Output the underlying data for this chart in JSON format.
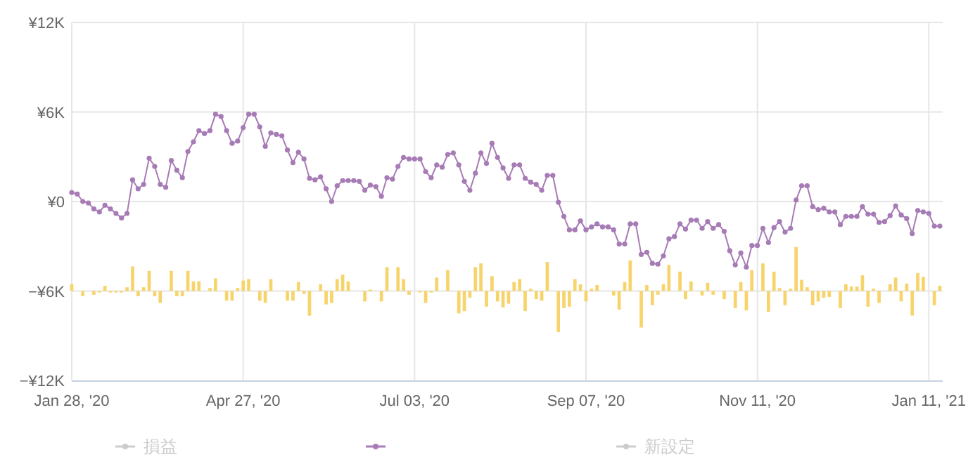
{
  "chart_data": {
    "type": "line",
    "marker": "circle",
    "line_style": "solid",
    "grid": true,
    "legend": "bottom",
    "ylim": [
      -12000,
      12000
    ],
    "yticks": [
      {
        "value": -12000,
        "label": "−¥12K"
      },
      {
        "value": -6000,
        "label": "−¥6K"
      },
      {
        "value": 0,
        "label": "¥0"
      },
      {
        "value": 6000,
        "label": "¥6K"
      },
      {
        "value": 12000,
        "label": "¥12K"
      }
    ],
    "categories": [
      "Jan 28, '20",
      null,
      null,
      null,
      null,
      null,
      null,
      null,
      null,
      null,
      null,
      null,
      null,
      null,
      null,
      null,
      null,
      null,
      null,
      null,
      null,
      null,
      null,
      null,
      null,
      null,
      null,
      null,
      null,
      null,
      null,
      "Apr 27, '20",
      null,
      null,
      null,
      null,
      null,
      null,
      null,
      null,
      null,
      null,
      null,
      null,
      null,
      null,
      null,
      null,
      null,
      null,
      null,
      null,
      null,
      null,
      null,
      null,
      null,
      null,
      null,
      null,
      null,
      null,
      "Jul 03, '20",
      null,
      null,
      null,
      null,
      null,
      null,
      null,
      null,
      null,
      null,
      null,
      null,
      null,
      null,
      null,
      null,
      null,
      null,
      null,
      null,
      null,
      null,
      null,
      null,
      null,
      null,
      null,
      null,
      null,
      null,
      "Sep 07, '20",
      null,
      null,
      null,
      null,
      null,
      null,
      null,
      null,
      null,
      null,
      null,
      null,
      null,
      null,
      null,
      null,
      null,
      null,
      null,
      null,
      null,
      null,
      null,
      null,
      null,
      null,
      null,
      null,
      null,
      null,
      "Nov 11, '20",
      null,
      null,
      null,
      null,
      null,
      null,
      null,
      null,
      null,
      null,
      null,
      null,
      null,
      null,
      null,
      null,
      null,
      null,
      null,
      null,
      null,
      null,
      null,
      null,
      null,
      null,
      null,
      null,
      null,
      null,
      "Jan 11, '21",
      null,
      null
    ],
    "series": [
      {
        "name": "損益",
        "type": "line",
        "color": "#cccccc",
        "values": [
          null,
          null,
          null,
          null,
          null,
          null,
          null,
          null,
          null,
          null,
          null,
          null,
          null,
          null,
          null,
          null,
          null,
          null,
          null,
          null,
          null,
          null,
          null,
          null,
          null,
          null,
          null,
          null,
          null,
          null,
          null,
          null,
          null,
          null,
          null,
          null,
          null,
          null,
          null,
          null,
          null,
          null,
          null,
          null,
          null,
          null,
          null,
          null,
          null,
          null,
          null,
          null,
          null,
          null,
          null,
          null,
          null,
          null,
          null,
          null,
          null,
          null,
          null,
          null,
          null,
          null,
          null,
          null,
          null,
          null,
          null,
          null,
          null,
          null,
          null,
          null,
          null,
          null,
          null,
          null,
          null,
          null,
          null,
          null,
          null,
          null,
          null,
          null,
          null,
          null,
          null,
          null,
          null,
          null,
          null,
          null,
          null,
          null,
          null,
          null,
          null,
          null,
          null,
          null,
          null,
          null,
          null,
          null,
          null,
          null,
          null,
          null,
          null,
          null,
          null,
          null,
          null,
          null,
          null,
          null,
          null,
          null,
          null,
          null,
          null,
          null,
          null,
          null,
          null,
          null,
          null,
          null,
          null,
          null,
          null,
          null,
          null,
          null,
          null,
          null,
          null,
          null,
          null,
          null,
          null,
          null,
          null,
          null,
          null,
          null,
          null,
          null,
          null,
          null,
          null,
          null,
          null,
          null
        ]
      },
      {
        "type": "line",
        "color": "#a77bb5",
        "values": [
          600,
          500,
          0,
          -100,
          -500,
          -700,
          -250,
          -500,
          -800,
          -1100,
          -800,
          1450,
          850,
          1150,
          2900,
          2350,
          1150,
          950,
          2750,
          2100,
          1600,
          3350,
          4000,
          4750,
          4550,
          4750,
          5850,
          5700,
          4750,
          3900,
          4050,
          4950,
          5850,
          5850,
          5000,
          3700,
          4600,
          4500,
          4400,
          3450,
          2600,
          3300,
          2850,
          1550,
          1450,
          1650,
          850,
          0,
          1050,
          1400,
          1400,
          1400,
          1350,
          750,
          1100,
          1000,
          350,
          1600,
          1500,
          2350,
          2950,
          2850,
          2850,
          2850,
          2000,
          1600,
          2450,
          2300,
          3150,
          3250,
          2450,
          1350,
          750,
          1900,
          3250,
          2550,
          3900,
          2950,
          2250,
          1550,
          2450,
          2450,
          1550,
          1300,
          1150,
          750,
          1750,
          1750,
          -50,
          -1000,
          -1900,
          -1900,
          -1300,
          -1900,
          -1700,
          -1500,
          -1700,
          -1700,
          -1900,
          -2850,
          -2850,
          -1500,
          -1500,
          -3550,
          -3400,
          -4150,
          -4200,
          -3650,
          -2500,
          -2350,
          -1500,
          -1850,
          -1250,
          -1250,
          -1800,
          -1350,
          -1800,
          -1550,
          -2000,
          -3300,
          -4250,
          -3450,
          -4400,
          -2950,
          -2950,
          -1800,
          -2750,
          -1750,
          -1350,
          -2050,
          -1800,
          100,
          1050,
          1050,
          -350,
          -550,
          -450,
          -700,
          -700,
          -1550,
          -1000,
          -1000,
          -1000,
          -350,
          -850,
          -850,
          -1400,
          -1350,
          -950,
          -300,
          -900,
          -1150,
          -2150,
          -600,
          -700,
          -800,
          -1650,
          -1650
        ]
      },
      {
        "name": "新設定",
        "type": "line",
        "color": "#cccccc",
        "values": [
          null,
          null,
          null,
          null,
          null,
          null,
          null,
          null,
          null,
          null,
          null,
          null,
          null,
          null,
          null,
          null,
          null,
          null,
          null,
          null,
          null,
          null,
          null,
          null,
          null,
          null,
          null,
          null,
          null,
          null,
          null,
          null,
          null,
          null,
          null,
          null,
          null,
          null,
          null,
          null,
          null,
          null,
          null,
          null,
          null,
          null,
          null,
          null,
          null,
          null,
          null,
          null,
          null,
          null,
          null,
          null,
          null,
          null,
          null,
          null,
          null,
          null,
          null,
          null,
          null,
          null,
          null,
          null,
          null,
          null,
          null,
          null,
          null,
          null,
          null,
          null,
          null,
          null,
          null,
          null,
          null,
          null,
          null,
          null,
          null,
          null,
          null,
          null,
          null,
          null,
          null,
          null,
          null,
          null,
          null,
          null,
          null,
          null,
          null,
          null,
          null,
          null,
          null,
          null,
          null,
          null,
          null,
          null,
          null,
          null,
          null,
          null,
          null,
          null,
          null,
          null,
          null,
          null,
          null,
          null,
          null,
          null,
          null,
          null,
          null,
          null,
          null,
          null,
          null,
          null,
          null,
          null,
          null,
          null,
          null,
          null,
          null,
          null,
          null,
          null,
          null,
          null,
          null,
          null,
          null,
          null,
          null,
          null,
          null,
          null,
          null,
          null,
          null,
          null,
          null,
          null,
          null,
          null
        ]
      },
      {
        "type": "bar",
        "color": "#f7d46b",
        "values": [
          450,
          0,
          -350,
          0,
          -250,
          -100,
          350,
          -100,
          -100,
          -100,
          250,
          1650,
          -350,
          250,
          1350,
          -350,
          -800,
          0,
          1350,
          -350,
          -350,
          1350,
          650,
          650,
          0,
          200,
          850,
          0,
          -650,
          -650,
          200,
          700,
          800,
          0,
          -650,
          -800,
          800,
          0,
          0,
          -650,
          -650,
          600,
          -200,
          -1650,
          0,
          450,
          -900,
          -800,
          800,
          1100,
          650,
          0,
          0,
          -700,
          100,
          0,
          -700,
          1600,
          0,
          1600,
          800,
          -250,
          0,
          -100,
          -800,
          -100,
          900,
          0,
          1400,
          0,
          -1500,
          -1350,
          -450,
          1600,
          1850,
          -1050,
          1000,
          -700,
          -1100,
          -850,
          600,
          800,
          -1350,
          150,
          -550,
          -650,
          1950,
          0,
          -2750,
          -1150,
          -1050,
          800,
          450,
          -700,
          150,
          400,
          0,
          0,
          -300,
          -1250,
          600,
          2050,
          0,
          -2450,
          400,
          -950,
          -250,
          450,
          1750,
          0,
          1300,
          -550,
          650,
          0,
          -300,
          550,
          -250,
          0,
          -550,
          0,
          -1150,
          600,
          -1300,
          1400,
          0,
          1850,
          -1400,
          1300,
          200,
          -950,
          150,
          2950,
          750,
          250,
          -950,
          -700,
          -450,
          -400,
          0,
          -1150,
          450,
          300,
          300,
          1050,
          -1050,
          150,
          -800,
          0,
          450,
          900,
          -700,
          500,
          -1650,
          1200,
          950,
          0,
          -950,
          350
        ],
        "base": [
          -6000,
          null,
          -6000,
          null,
          -6000,
          -6000,
          -6000,
          -6000,
          -6000,
          -6000,
          -6000,
          -6000,
          -6000,
          -6000,
          -6000,
          -6000,
          -6000,
          null,
          -6000,
          -6000,
          -6000,
          -6000,
          -6000,
          -6000,
          null,
          -6000,
          -6000,
          null,
          -6000,
          -6000,
          -6000,
          -6000,
          -6000,
          null,
          -6000,
          -6000,
          -6000,
          null,
          null,
          -6000,
          -6000,
          -6000,
          -6000,
          -6000,
          null,
          -6000,
          -6000,
          -6000,
          -6000,
          -6000,
          -6000,
          null,
          null,
          -6000,
          -6000,
          null,
          -6000,
          -6000,
          null,
          -6000,
          -6000,
          -6000,
          null,
          -6000,
          -6000,
          -6000,
          -6000,
          null,
          -6000,
          null,
          -6000,
          -6000,
          -6000,
          -6000,
          -6000,
          -6000,
          -6000,
          -6000,
          -6000,
          -6000,
          -6000,
          -6000,
          -6000,
          -6000,
          -6000,
          -6000,
          -6000,
          null,
          -6000,
          -6000,
          -6000,
          -6000,
          -6000,
          -6000,
          -6000,
          -6000,
          null,
          null,
          -6000,
          -6000,
          -6000,
          -6000,
          null,
          -6000,
          -6000,
          -6000,
          -6000,
          -6000,
          -6000,
          null,
          -6000,
          -6000,
          -6000,
          null,
          -6000,
          -6000,
          -6000,
          null,
          -6000,
          null,
          -6000,
          -6000,
          -6000,
          -6000,
          null,
          -6000,
          -6000,
          -6000,
          -6000,
          -6000,
          -6000,
          -6000,
          -6000,
          -6000,
          -6000,
          -6000,
          -6000,
          -6000,
          null,
          -6000,
          -6000,
          -6000,
          -6000,
          -6000,
          -6000,
          -6000,
          -6000,
          null,
          -6000,
          -6000,
          -6000,
          -6000,
          -6000,
          -6000,
          -6000,
          null,
          -6000,
          -6000
        ]
      }
    ]
  }
}
